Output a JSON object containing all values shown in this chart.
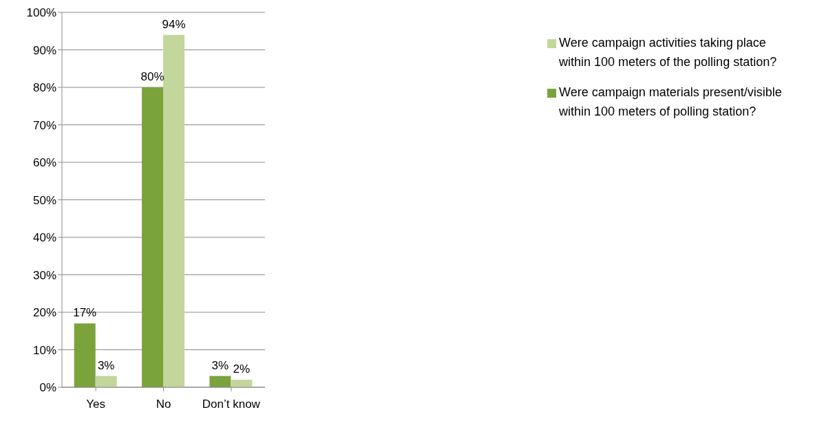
{
  "chart_data": {
    "type": "bar",
    "categories": [
      "Yes",
      "No",
      "Don’t know"
    ],
    "series": [
      {
        "name": "Were campaign materials present/visible within 100 meters of polling station?",
        "color": "#7aa33c",
        "values": [
          17,
          80,
          3
        ],
        "value_labels": [
          "17%",
          "80%",
          "3%"
        ]
      },
      {
        "name": "Were campaign activities taking place within 100 meters of the polling station?",
        "color": "#c3d69b",
        "values": [
          3,
          94,
          2
        ],
        "value_labels": [
          "3%",
          "94%",
          "2%"
        ]
      }
    ],
    "ylim": [
      0,
      100
    ],
    "yticks": [
      {
        "value": 0,
        "label": "0%"
      },
      {
        "value": 10,
        "label": "10%"
      },
      {
        "value": 20,
        "label": "20%"
      },
      {
        "value": 30,
        "label": "30%"
      },
      {
        "value": 40,
        "label": "40%"
      },
      {
        "value": 50,
        "label": "50%"
      },
      {
        "value": 60,
        "label": "60%"
      },
      {
        "value": 70,
        "label": "70%"
      },
      {
        "value": 80,
        "label": "80%"
      },
      {
        "value": 90,
        "label": "90%"
      },
      {
        "value": 100,
        "label": "100%"
      }
    ],
    "grid": "y",
    "legend": "top right"
  }
}
